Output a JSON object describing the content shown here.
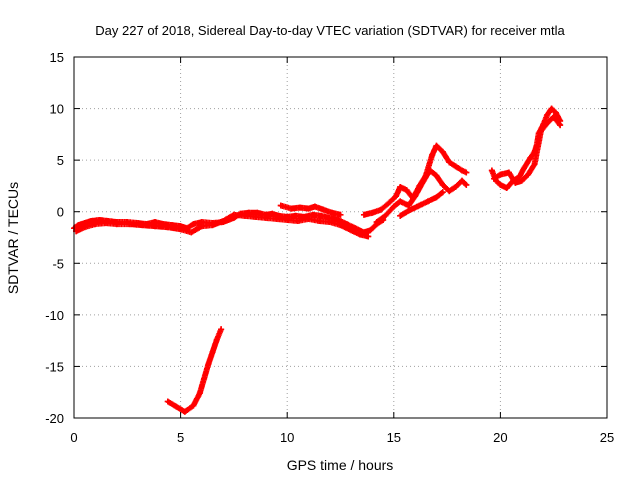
{
  "chart_data": {
    "type": "scatter",
    "title": "Day 227 of 2018, Sidereal Day-to-day VTEC variation (SDTVAR) for receiver mtla",
    "xlabel": "GPS time / hours",
    "ylabel": "SDTVAR / TECUs",
    "xlim": [
      0,
      25
    ],
    "ylim": [
      -20,
      15
    ],
    "xticks": [
      0,
      5,
      10,
      15,
      20,
      25
    ],
    "yticks": [
      -20,
      -15,
      -10,
      -5,
      0,
      5,
      10,
      15
    ],
    "grid": true,
    "marker": "+",
    "series": [
      {
        "name": "SDTVAR",
        "color": "#ff0000",
        "segments": [
          [
            [
              0.0,
              -1.6
            ],
            [
              0.2,
              -1.3
            ],
            [
              0.5,
              -1.1
            ],
            [
              0.8,
              -0.9
            ],
            [
              1.2,
              -0.8
            ],
            [
              1.6,
              -0.9
            ],
            [
              2.0,
              -1.0
            ],
            [
              2.5,
              -1.0
            ],
            [
              3.0,
              -1.1
            ],
            [
              3.4,
              -1.2
            ],
            [
              3.8,
              -1.0
            ],
            [
              4.2,
              -1.2
            ],
            [
              4.6,
              -1.3
            ],
            [
              5.0,
              -1.4
            ],
            [
              5.3,
              -1.6
            ],
            [
              5.6,
              -1.2
            ],
            [
              6.0,
              -1.0
            ],
            [
              6.5,
              -1.1
            ],
            [
              7.0,
              -1.0
            ],
            [
              7.5,
              -0.6
            ],
            [
              7.8,
              -0.2
            ],
            [
              8.2,
              -0.1
            ],
            [
              8.6,
              -0.1
            ],
            [
              9.0,
              -0.3
            ],
            [
              9.3,
              -0.2
            ],
            [
              9.6,
              -0.4
            ],
            [
              10.0,
              -0.5
            ],
            [
              10.4,
              -0.4
            ],
            [
              10.8,
              -0.5
            ],
            [
              11.2,
              -0.3
            ],
            [
              11.6,
              -0.4
            ],
            [
              12.0,
              -0.6
            ],
            [
              12.4,
              -0.8
            ],
            [
              12.8,
              -1.2
            ],
            [
              13.2,
              -1.6
            ],
            [
              13.6,
              -2.0
            ],
            [
              13.9,
              -1.8
            ],
            [
              14.2,
              -1.2
            ],
            [
              14.5,
              -0.8
            ]
          ],
          [
            [
              0.1,
              -1.9
            ],
            [
              0.5,
              -1.5
            ],
            [
              1.0,
              -1.2
            ],
            [
              1.5,
              -1.1
            ],
            [
              2.0,
              -1.2
            ],
            [
              2.6,
              -1.2
            ],
            [
              3.2,
              -1.3
            ],
            [
              3.8,
              -1.4
            ],
            [
              4.4,
              -1.5
            ],
            [
              5.0,
              -1.7
            ],
            [
              5.5,
              -2.0
            ],
            [
              6.0,
              -1.4
            ],
            [
              6.5,
              -1.3
            ],
            [
              7.0,
              -0.9
            ],
            [
              7.5,
              -0.3
            ],
            [
              8.0,
              -0.4
            ],
            [
              8.5,
              -0.5
            ],
            [
              9.0,
              -0.6
            ],
            [
              9.5,
              -0.7
            ],
            [
              10.0,
              -0.8
            ],
            [
              10.5,
              -0.9
            ],
            [
              11.0,
              -0.7
            ],
            [
              11.5,
              -0.9
            ],
            [
              12.0,
              -1.0
            ],
            [
              12.5,
              -1.3
            ],
            [
              13.0,
              -1.8
            ],
            [
              13.4,
              -2.2
            ],
            [
              13.8,
              -2.4
            ]
          ],
          [
            [
              9.7,
              0.6
            ],
            [
              10.2,
              0.3
            ],
            [
              10.6,
              0.4
            ],
            [
              11.0,
              0.3
            ],
            [
              11.3,
              0.5
            ],
            [
              11.7,
              0.2
            ],
            [
              12.1,
              -0.1
            ],
            [
              12.5,
              -0.3
            ]
          ],
          [
            [
              13.6,
              -0.3
            ],
            [
              14.0,
              -0.1
            ],
            [
              14.4,
              0.2
            ],
            [
              14.8,
              0.9
            ],
            [
              15.1,
              1.5
            ],
            [
              15.3,
              2.4
            ],
            [
              15.6,
              2.1
            ],
            [
              15.9,
              1.3
            ],
            [
              16.2,
              2.5
            ],
            [
              16.5,
              3.5
            ],
            [
              16.8,
              5.5
            ],
            [
              17.0,
              6.4
            ],
            [
              17.3,
              5.8
            ],
            [
              17.6,
              4.8
            ],
            [
              17.9,
              4.4
            ],
            [
              18.2,
              4.0
            ],
            [
              18.4,
              3.8
            ]
          ],
          [
            [
              14.2,
              -1.0
            ],
            [
              14.6,
              -0.4
            ],
            [
              15.0,
              0.5
            ],
            [
              15.3,
              1.0
            ],
            [
              15.7,
              0.6
            ],
            [
              16.0,
              1.5
            ],
            [
              16.4,
              3.0
            ],
            [
              16.7,
              4.0
            ],
            [
              17.0,
              3.5
            ],
            [
              17.3,
              2.6
            ],
            [
              17.6,
              2.0
            ],
            [
              17.9,
              2.4
            ],
            [
              18.2,
              3.0
            ],
            [
              18.4,
              2.6
            ]
          ],
          [
            [
              15.3,
              -0.4
            ],
            [
              15.7,
              0.1
            ],
            [
              16.2,
              0.6
            ],
            [
              16.6,
              1.0
            ],
            [
              17.0,
              1.4
            ],
            [
              17.3,
              1.9
            ]
          ],
          [
            [
              19.6,
              4.0
            ],
            [
              19.8,
              3.0
            ],
            [
              20.0,
              2.6
            ],
            [
              20.3,
              2.3
            ],
            [
              20.6,
              3.0
            ],
            [
              20.9,
              3.4
            ],
            [
              21.1,
              4.2
            ],
            [
              21.4,
              5.2
            ],
            [
              21.6,
              5.8
            ],
            [
              21.7,
              6.4
            ],
            [
              21.8,
              7.6
            ],
            [
              22.0,
              8.4
            ],
            [
              22.2,
              9.4
            ],
            [
              22.4,
              10.0
            ],
            [
              22.6,
              9.6
            ],
            [
              22.8,
              8.8
            ]
          ],
          [
            [
              19.7,
              3.2
            ],
            [
              20.0,
              3.6
            ],
            [
              20.4,
              3.8
            ],
            [
              20.7,
              2.8
            ],
            [
              21.0,
              3.0
            ],
            [
              21.3,
              3.6
            ],
            [
              21.6,
              4.6
            ],
            [
              21.9,
              7.8
            ],
            [
              22.2,
              8.6
            ],
            [
              22.5,
              9.2
            ],
            [
              22.8,
              8.4
            ]
          ],
          [
            [
              4.4,
              -18.4
            ],
            [
              4.8,
              -18.9
            ],
            [
              5.2,
              -19.4
            ],
            [
              5.6,
              -18.8
            ],
            [
              5.9,
              -17.6
            ],
            [
              6.1,
              -16.2
            ],
            [
              6.3,
              -14.8
            ],
            [
              6.5,
              -13.6
            ],
            [
              6.7,
              -12.4
            ],
            [
              6.9,
              -11.4
            ]
          ]
        ]
      }
    ]
  }
}
